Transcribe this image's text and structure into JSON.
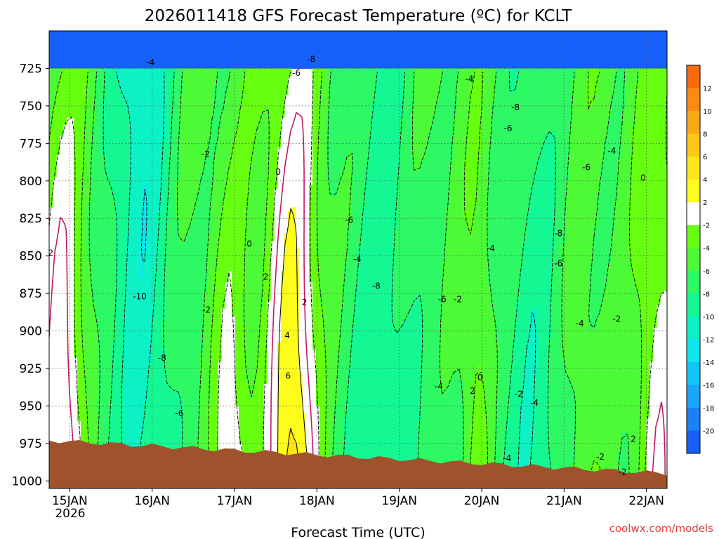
{
  "chart_data": {
    "type": "heatmap",
    "title": "2026011418 GFS Forecast Temperature (ºC) for KCLT",
    "xlabel": "Forecast Time (UTC)",
    "ylabel": "",
    "credit": "coolwx.com/models",
    "x_ticks": [
      "15JAN",
      "16JAN",
      "17JAN",
      "18JAN",
      "19JAN",
      "20JAN",
      "21JAN",
      "22JAN"
    ],
    "x_year": "2026",
    "x_range_days": [
      14.75,
      22.25
    ],
    "y_ticks": [
      725,
      750,
      775,
      800,
      825,
      850,
      875,
      900,
      925,
      950,
      975,
      1000
    ],
    "y_range": [
      700,
      1005
    ],
    "y_reversed": true,
    "colorbar": {
      "ticks": [
        12,
        10,
        8,
        6,
        4,
        2,
        -2,
        -4,
        -6,
        -8,
        -10,
        -12,
        -14,
        -16,
        -18,
        -20
      ],
      "bins": [
        {
          "lo": 12,
          "hi": 14,
          "color": "#fa6a0c"
        },
        {
          "lo": 10,
          "hi": 12,
          "color": "#fc8a10"
        },
        {
          "lo": 8,
          "hi": 10,
          "color": "#fca814"
        },
        {
          "lo": 6,
          "hi": 8,
          "color": "#fdc716"
        },
        {
          "lo": 4,
          "hi": 6,
          "color": "#fde518"
        },
        {
          "lo": 2,
          "hi": 4,
          "color": "#fdfc1a"
        },
        {
          "lo": -2,
          "hi": 2,
          "color": "#ffffff"
        },
        {
          "lo": -4,
          "hi": -2,
          "color": "#66ff10"
        },
        {
          "lo": -6,
          "hi": -4,
          "color": "#4cfa36"
        },
        {
          "lo": -8,
          "hi": -6,
          "color": "#2cf964"
        },
        {
          "lo": -10,
          "hi": -8,
          "color": "#14f894"
        },
        {
          "lo": -12,
          "hi": -10,
          "color": "#0cf2c4"
        },
        {
          "lo": -14,
          "hi": -12,
          "color": "#0ee6ee"
        },
        {
          "lo": -16,
          "hi": -14,
          "color": "#0ec6f8"
        },
        {
          "lo": -18,
          "hi": -16,
          "color": "#1aa6f8"
        },
        {
          "lo": -20,
          "hi": -18,
          "color": "#1c80fa"
        },
        {
          "lo": -22,
          "hi": -20,
          "color": "#1660fc"
        }
      ]
    },
    "ground_color": "#a0522d",
    "zero_contour_color": "#c0186b",
    "contour_labels": [
      {
        "text": "-4",
        "x": 15.98,
        "y": 721
      },
      {
        "text": "-6",
        "x": 17.75,
        "y": 728
      },
      {
        "text": "-8",
        "x": 17.93,
        "y": 719
      },
      {
        "text": "-4",
        "x": 19.85,
        "y": 732
      },
      {
        "text": "-8",
        "x": 20.41,
        "y": 751
      },
      {
        "text": "-6",
        "x": 20.32,
        "y": 765
      },
      {
        "text": "-4",
        "x": 21.58,
        "y": 780
      },
      {
        "text": "-6",
        "x": 21.27,
        "y": 791
      },
      {
        "text": "0",
        "x": 21.96,
        "y": 798
      },
      {
        "text": "-2",
        "x": 16.65,
        "y": 782
      },
      {
        "text": "0",
        "x": 17.53,
        "y": 794
      },
      {
        "text": "-6",
        "x": 18.39,
        "y": 826
      },
      {
        "text": "0",
        "x": 17.18,
        "y": 842
      },
      {
        "text": "-8",
        "x": 20.93,
        "y": 835
      },
      {
        "text": "-4",
        "x": 20.11,
        "y": 845
      },
      {
        "text": "-4",
        "x": 18.49,
        "y": 852
      },
      {
        "text": "-6",
        "x": 20.93,
        "y": 855
      },
      {
        "text": "2",
        "x": 14.77,
        "y": 848
      },
      {
        "text": "-10",
        "x": 15.85,
        "y": 877
      },
      {
        "text": "2",
        "x": 17.38,
        "y": 864
      },
      {
        "text": "-8",
        "x": 18.72,
        "y": 870
      },
      {
        "text": "-6",
        "x": 19.52,
        "y": 879
      },
      {
        "text": "2",
        "x": 17.85,
        "y": 881
      },
      {
        "text": "-2",
        "x": 19.71,
        "y": 879
      },
      {
        "text": "-2",
        "x": 16.66,
        "y": 886
      },
      {
        "text": "-2",
        "x": 21.64,
        "y": 892
      },
      {
        "text": "-4",
        "x": 21.19,
        "y": 895
      },
      {
        "text": "4",
        "x": 17.64,
        "y": 903
      },
      {
        "text": "-8",
        "x": 16.12,
        "y": 918
      },
      {
        "text": "6",
        "x": 17.65,
        "y": 930
      },
      {
        "text": "0",
        "x": 19.98,
        "y": 931
      },
      {
        "text": "-4",
        "x": 19.48,
        "y": 937
      },
      {
        "text": "2",
        "x": 19.89,
        "y": 940
      },
      {
        "text": "-2",
        "x": 20.45,
        "y": 942
      },
      {
        "text": "-4",
        "x": 20.64,
        "y": 948
      },
      {
        "text": "-6",
        "x": 16.33,
        "y": 955
      },
      {
        "text": "2",
        "x": 21.84,
        "y": 972
      },
      {
        "text": "-4",
        "x": 20.31,
        "y": 985
      },
      {
        "text": "-2",
        "x": 21.44,
        "y": 984
      },
      {
        "text": "-2",
        "x": 21.71,
        "y": 994
      }
    ]
  }
}
